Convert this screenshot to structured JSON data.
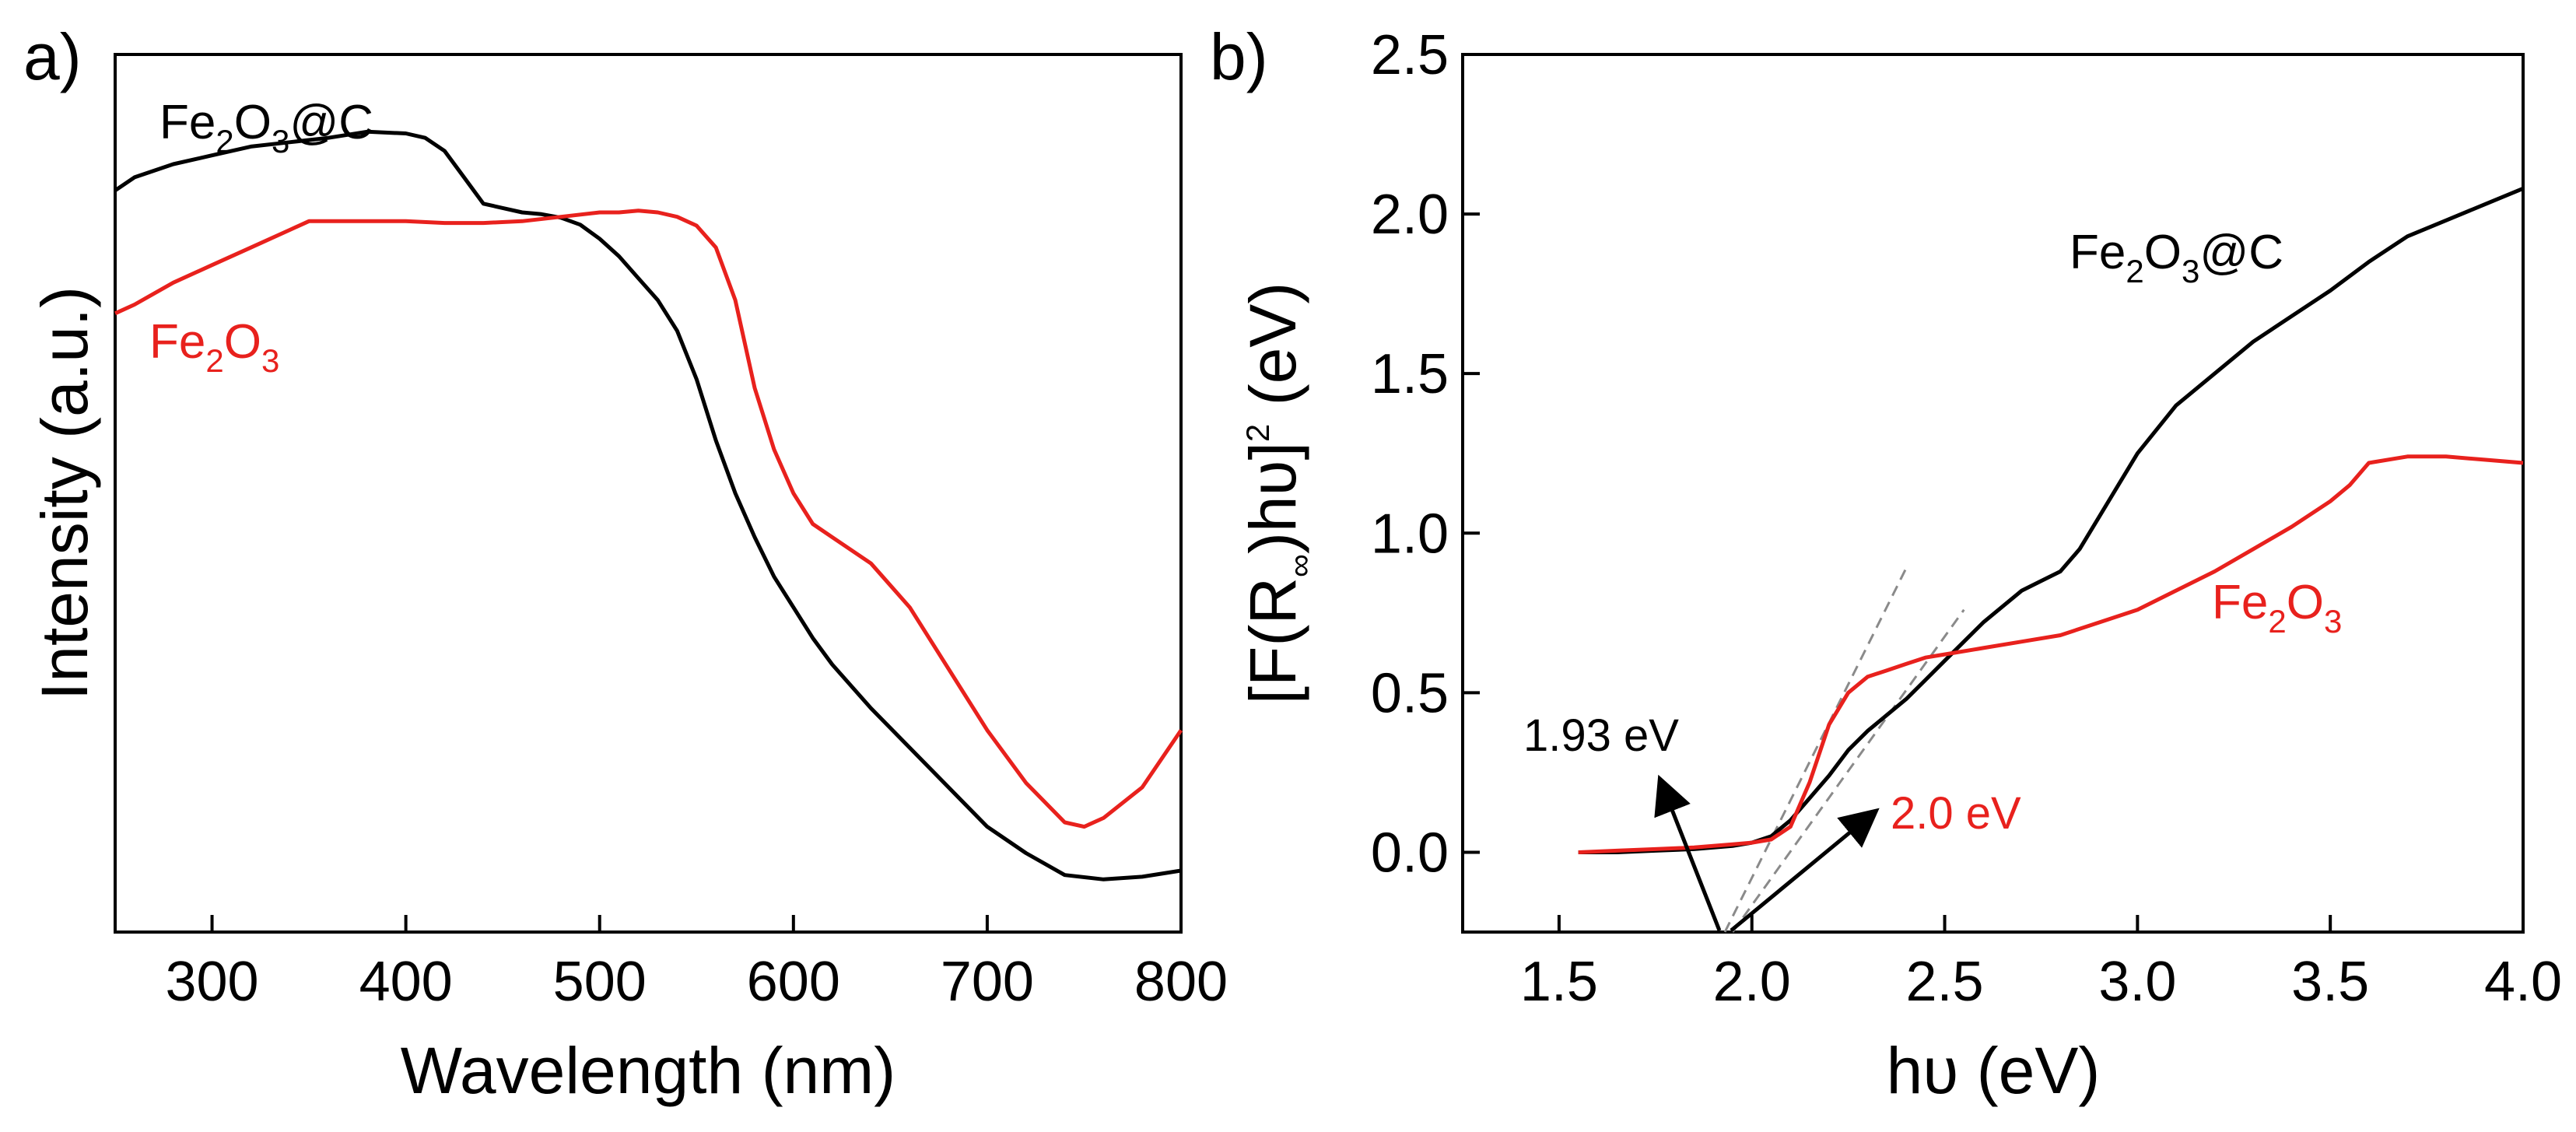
{
  "chart_data": [
    {
      "panel_label": "a)",
      "type": "line",
      "title": "",
      "xlabel": "Wavelength (nm)",
      "ylabel": "Intensity (a.u.)",
      "xlim": [
        250,
        800
      ],
      "ylim": [
        0,
        1
      ],
      "x_ticks": [
        300,
        400,
        500,
        600,
        700,
        800
      ],
      "y_ticks": [],
      "grid": false,
      "series": [
        {
          "name": "Fe2O3@C",
          "label_main": "Fe",
          "label_sub1": "2",
          "label_mid": "O",
          "label_sub2": "3",
          "label_tail": "@C",
          "color": "#000000",
          "x": [
            250,
            260,
            280,
            300,
            320,
            340,
            360,
            380,
            400,
            410,
            420,
            430,
            440,
            450,
            460,
            470,
            480,
            490,
            500,
            510,
            520,
            530,
            540,
            550,
            560,
            570,
            580,
            590,
            600,
            610,
            620,
            640,
            660,
            680,
            700,
            720,
            740,
            760,
            780,
            800
          ],
          "y": [
            0.845,
            0.86,
            0.875,
            0.885,
            0.895,
            0.9,
            0.905,
            0.912,
            0.91,
            0.905,
            0.89,
            0.86,
            0.83,
            0.825,
            0.82,
            0.818,
            0.814,
            0.806,
            0.79,
            0.77,
            0.745,
            0.72,
            0.685,
            0.63,
            0.56,
            0.5,
            0.45,
            0.405,
            0.37,
            0.335,
            0.305,
            0.255,
            0.21,
            0.165,
            0.12,
            0.09,
            0.065,
            0.06,
            0.063,
            0.07
          ]
        },
        {
          "name": "Fe2O3",
          "label_main": "Fe",
          "label_sub1": "2",
          "label_mid": "O",
          "label_sub2": "3",
          "label_tail": "",
          "color": "#e8211d",
          "x": [
            250,
            260,
            280,
            300,
            320,
            340,
            350,
            360,
            380,
            400,
            420,
            440,
            460,
            480,
            500,
            510,
            520,
            530,
            540,
            550,
            560,
            570,
            580,
            590,
            600,
            610,
            620,
            640,
            660,
            680,
            700,
            720,
            740,
            750,
            760,
            780,
            800
          ],
          "y": [
            0.705,
            0.715,
            0.74,
            0.76,
            0.78,
            0.8,
            0.81,
            0.81,
            0.81,
            0.81,
            0.808,
            0.808,
            0.81,
            0.815,
            0.82,
            0.82,
            0.822,
            0.82,
            0.815,
            0.805,
            0.78,
            0.72,
            0.62,
            0.55,
            0.5,
            0.465,
            0.45,
            0.42,
            0.37,
            0.3,
            0.23,
            0.17,
            0.125,
            0.12,
            0.13,
            0.165,
            0.23
          ]
        }
      ]
    },
    {
      "panel_label": "b)",
      "type": "line",
      "title": "",
      "xlabel": "hυ (eV)",
      "ylabel_prefix": "[F(R",
      "ylabel_sub": "∞",
      "ylabel_mid": ")hυ]",
      "ylabel_sup": "2",
      "ylabel_tail": " (eV)",
      "xlim": [
        1.25,
        4.0
      ],
      "ylim": [
        -0.25,
        2.5
      ],
      "x_ticks": [
        1.5,
        2.0,
        2.5,
        3.0,
        3.5,
        4.0
      ],
      "x_tick_labels": [
        "1.5",
        "2.0",
        "2.5",
        "3.0",
        "3.5",
        "4.0"
      ],
      "y_ticks": [
        0.0,
        0.5,
        1.0,
        1.5,
        2.0,
        2.5
      ],
      "y_tick_labels": [
        "0.0",
        "0.5",
        "1.0",
        "1.5",
        "2.0",
        "2.5"
      ],
      "grid": false,
      "series": [
        {
          "name": "Fe2O3@C",
          "label_main": "Fe",
          "label_sub1": "2",
          "label_mid": "O",
          "label_sub2": "3",
          "label_tail": "@C",
          "color": "#000000",
          "x": [
            1.55,
            1.65,
            1.75,
            1.85,
            1.95,
            2.0,
            2.05,
            2.1,
            2.15,
            2.2,
            2.25,
            2.3,
            2.35,
            2.4,
            2.45,
            2.5,
            2.55,
            2.6,
            2.65,
            2.7,
            2.75,
            2.8,
            2.85,
            2.9,
            2.95,
            3.0,
            3.1,
            3.2,
            3.3,
            3.4,
            3.5,
            3.6,
            3.7,
            3.8,
            3.9,
            4.0
          ],
          "y": [
            0.0,
            0.0,
            0.005,
            0.01,
            0.02,
            0.03,
            0.05,
            0.1,
            0.17,
            0.24,
            0.32,
            0.38,
            0.43,
            0.48,
            0.54,
            0.6,
            0.66,
            0.72,
            0.77,
            0.82,
            0.85,
            0.88,
            0.95,
            1.05,
            1.15,
            1.25,
            1.4,
            1.5,
            1.6,
            1.68,
            1.76,
            1.85,
            1.93,
            1.98,
            2.03,
            2.08
          ]
        },
        {
          "name": "Fe2O3",
          "label_main": "Fe",
          "label_sub1": "2",
          "label_mid": "O",
          "label_sub2": "3",
          "label_tail": "",
          "color": "#e8211d",
          "x": [
            1.55,
            1.65,
            1.75,
            1.85,
            1.95,
            2.0,
            2.05,
            2.1,
            2.15,
            2.2,
            2.25,
            2.3,
            2.35,
            2.4,
            2.45,
            2.5,
            2.6,
            2.7,
            2.8,
            2.9,
            3.0,
            3.1,
            3.2,
            3.3,
            3.4,
            3.5,
            3.55,
            3.6,
            3.7,
            3.8,
            3.9,
            4.0
          ],
          "y": [
            0.0,
            0.005,
            0.01,
            0.015,
            0.025,
            0.03,
            0.04,
            0.08,
            0.22,
            0.4,
            0.5,
            0.55,
            0.57,
            0.59,
            0.61,
            0.62,
            0.64,
            0.66,
            0.68,
            0.72,
            0.76,
            0.82,
            0.88,
            0.95,
            1.02,
            1.1,
            1.15,
            1.22,
            1.24,
            1.24,
            1.23,
            1.22
          ]
        }
      ],
      "fit_lines": [
        {
          "name": "fit-fe2o3c",
          "x": [
            1.95,
            2.55
          ],
          "y": [
            -0.25,
            0.76
          ]
        },
        {
          "name": "fit-fe2o3",
          "x": [
            1.93,
            2.4
          ],
          "y": [
            -0.25,
            0.89
          ]
        }
      ],
      "annotations": [
        {
          "name": "bandgap-1.93",
          "text": "1.93 eV",
          "color": "#000000"
        },
        {
          "name": "bandgap-2.0",
          "text": "2.0 eV",
          "color": "#e8211d"
        }
      ]
    }
  ]
}
